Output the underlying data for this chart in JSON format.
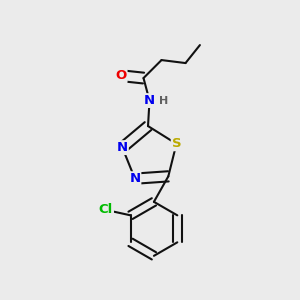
{
  "background_color": "#ebebeb",
  "atom_colors": {
    "C": "#000000",
    "H": "#606060",
    "N": "#0000ee",
    "O": "#ee0000",
    "S": "#bbaa00",
    "Cl": "#00bb00"
  },
  "bond_color": "#111111",
  "bond_lw": 1.5,
  "dbo": 0.016,
  "fs": 9.5,
  "fsh": 8.0
}
